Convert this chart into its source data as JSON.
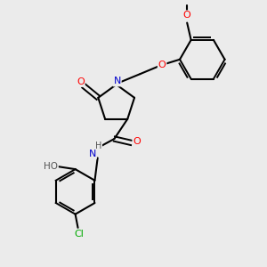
{
  "bg_color": "#ebebeb",
  "bond_color": "#000000",
  "atom_colors": {
    "N": "#0000cc",
    "O": "#ff0000",
    "Cl": "#00aa00",
    "H_text": "#555555",
    "C": "#000000"
  },
  "figsize": [
    3.0,
    3.0
  ],
  "dpi": 100
}
